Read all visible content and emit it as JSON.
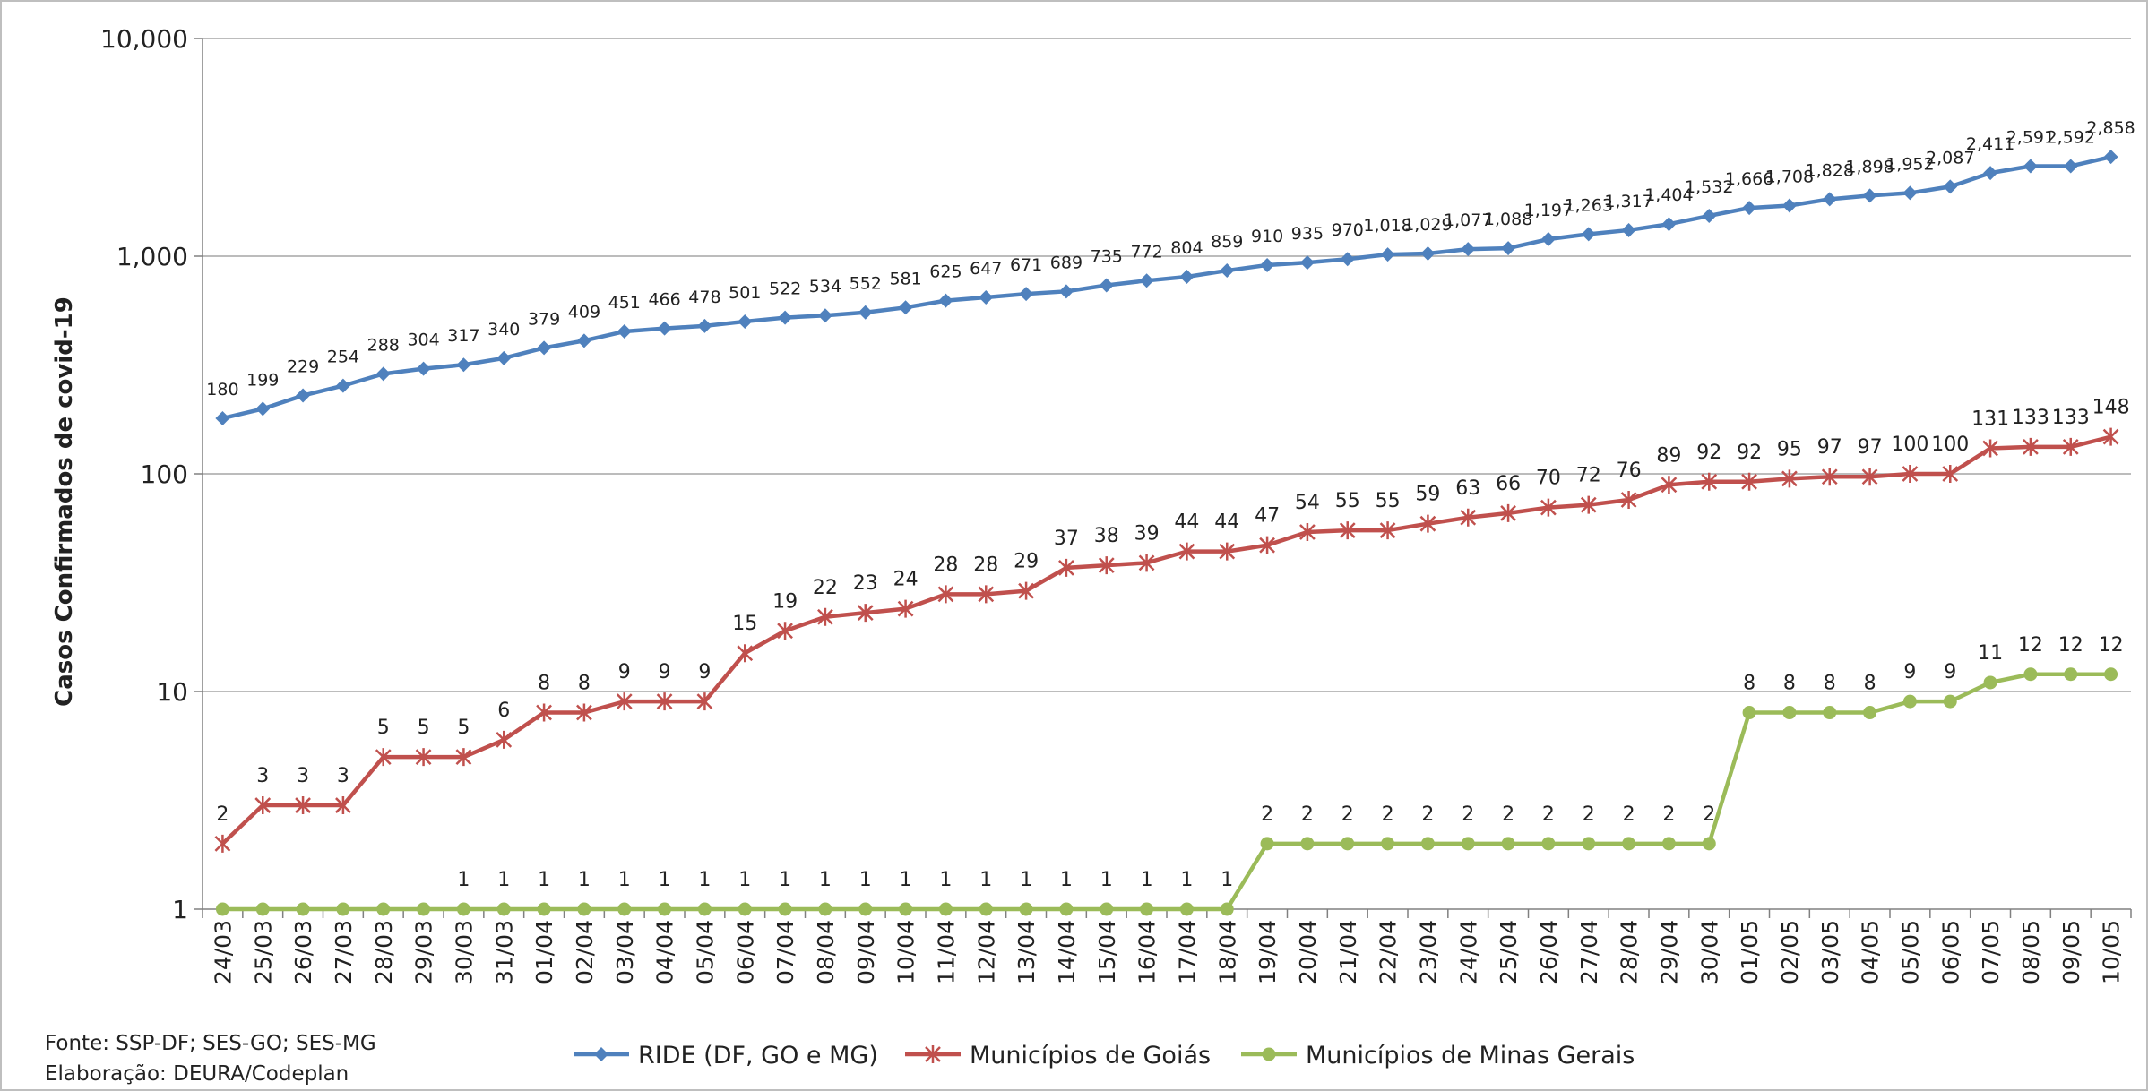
{
  "chart_data": {
    "type": "line",
    "ylabel": "Casos Confirmados de covid-19",
    "yscale": "log",
    "ylim": [
      1,
      10000
    ],
    "yticks": [
      "1",
      "10",
      "100",
      "1,000",
      "10,000"
    ],
    "grid": true,
    "legend_position": "bottom",
    "categories": [
      "24/03",
      "25/03",
      "26/03",
      "27/03",
      "28/03",
      "29/03",
      "30/03",
      "31/03",
      "01/04",
      "02/04",
      "03/04",
      "04/04",
      "05/04",
      "06/04",
      "07/04",
      "08/04",
      "09/04",
      "10/04",
      "11/04",
      "12/04",
      "13/04",
      "14/04",
      "15/04",
      "16/04",
      "17/04",
      "18/04",
      "19/04",
      "20/04",
      "21/04",
      "22/04",
      "23/04",
      "24/04",
      "25/04",
      "26/04",
      "27/04",
      "28/04",
      "29/04",
      "30/04",
      "01/05",
      "02/05",
      "03/05",
      "04/05",
      "05/05",
      "06/05",
      "07/05",
      "08/05",
      "09/05",
      "10/05"
    ],
    "series": [
      {
        "name": "RIDE (DF, GO e MG)",
        "color": "#4f81bd",
        "marker": "diamond",
        "values": [
          180,
          199,
          229,
          254,
          288,
          304,
          317,
          340,
          379,
          409,
          451,
          466,
          478,
          501,
          522,
          534,
          552,
          581,
          625,
          647,
          671,
          689,
          735,
          772,
          804,
          859,
          910,
          935,
          970,
          1018,
          1029,
          1077,
          1088,
          1197,
          1263,
          1317,
          1404,
          1532,
          1666,
          1708,
          1828,
          1898,
          1952,
          2087,
          2411,
          2591,
          2592,
          2858
        ],
        "labels": [
          "180",
          "199",
          "229",
          "254",
          "288",
          "304",
          "317",
          "340",
          "379",
          "409",
          "451",
          "466",
          "478",
          "501",
          "522",
          "534",
          "552",
          "581",
          "625",
          "647",
          "671",
          "689",
          "735",
          "772",
          "804",
          "859",
          "910",
          "935",
          "970",
          "1,018",
          "1,029",
          "1,077",
          "1,088",
          "1,197",
          "1,263",
          "1,317",
          "1,404",
          "1,532",
          "1,666",
          "1,708",
          "1,828",
          "1,898",
          "1,952",
          "2,087",
          "2,411",
          "2,591",
          "2,592",
          "2,858"
        ]
      },
      {
        "name": "Municípios de Goiás",
        "color": "#c0504d",
        "marker": "star",
        "values": [
          2,
          3,
          3,
          3,
          5,
          5,
          5,
          6,
          8,
          8,
          9,
          9,
          9,
          15,
          19,
          22,
          23,
          24,
          28,
          28,
          29,
          37,
          38,
          39,
          44,
          44,
          47,
          54,
          55,
          55,
          59,
          63,
          66,
          70,
          72,
          76,
          89,
          92,
          92,
          95,
          97,
          97,
          100,
          100,
          131,
          133,
          133,
          148
        ],
        "labels": [
          "2",
          "3",
          "3",
          "3",
          "5",
          "5",
          "5",
          "6",
          "8",
          "8",
          "9",
          "9",
          "9",
          "15",
          "19",
          "22",
          "23",
          "24",
          "28",
          "28",
          "29",
          "37",
          "38",
          "39",
          "44",
          "44",
          "47",
          "54",
          "55",
          "55",
          "59",
          "63",
          "66",
          "70",
          "72",
          "76",
          "89",
          "92",
          "92",
          "95",
          "97",
          "97",
          "100",
          "100",
          "131",
          "133",
          "133",
          "148"
        ]
      },
      {
        "name": "Municípios de Minas Gerais",
        "color": "#9bbb59",
        "marker": "circle",
        "values": [
          1,
          1,
          1,
          1,
          1,
          1,
          1,
          1,
          1,
          1,
          1,
          1,
          1,
          1,
          1,
          1,
          1,
          1,
          1,
          1,
          1,
          1,
          1,
          1,
          1,
          1,
          2,
          2,
          2,
          2,
          2,
          2,
          2,
          2,
          2,
          2,
          2,
          2,
          8,
          8,
          8,
          8,
          9,
          9,
          11,
          12,
          12,
          12
        ],
        "labels": [
          "",
          "",
          "",
          "",
          "",
          "",
          "1",
          "1",
          "1",
          "1",
          "1",
          "1",
          "1",
          "1",
          "1",
          "1",
          "1",
          "1",
          "1",
          "1",
          "1",
          "1",
          "1",
          "1",
          "1",
          "1",
          "2",
          "2",
          "2",
          "2",
          "2",
          "2",
          "2",
          "2",
          "2",
          "2",
          "2",
          "2",
          "8",
          "8",
          "8",
          "8",
          "9",
          "9",
          "11",
          "12",
          "12",
          "12"
        ]
      }
    ]
  },
  "footer": {
    "source": "Fonte: SSP-DF; SES-GO; SES-MG",
    "credit": "Elaboração: DEURA/Codeplan"
  }
}
